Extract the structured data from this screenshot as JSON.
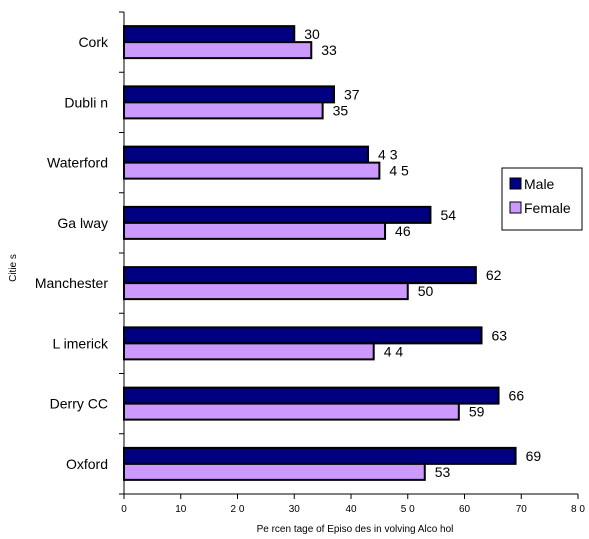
{
  "chart_data": {
    "type": "bar",
    "orientation": "horizontal",
    "categories": [
      "Cork",
      "Dublin",
      "Waterford",
      "Galway",
      "Manchester",
      "Limerick",
      "Derry CC",
      "Oxford"
    ],
    "series": [
      {
        "name": "Male",
        "values": [
          30,
          37,
          43,
          54,
          62,
          63,
          66,
          69
        ],
        "color": "#000080"
      },
      {
        "name": "Female",
        "values": [
          33,
          35,
          45,
          46,
          50,
          44,
          59,
          53
        ],
        "color": "#cc99ff"
      }
    ],
    "value_labels": {
      "Male": [
        "30",
        "37",
        "4 3",
        "54",
        "62",
        "63",
        "66",
        "69"
      ],
      "Female": [
        "33",
        "35",
        "4 5",
        "46",
        "50",
        "4 4",
        "59",
        "53"
      ]
    },
    "category_labels": [
      "Cork",
      "Dubli n",
      "Waterford",
      "Ga lway",
      "Manchester",
      "L imerick",
      "Derry CC",
      "Oxford"
    ],
    "xlabel": "Pe rcen tage of Episo des in volving Alco hol",
    "ylabel": "Citie s",
    "xlim": [
      0,
      80
    ],
    "xticks": [
      0,
      10,
      20,
      30,
      40,
      50,
      60,
      70,
      80
    ],
    "xtick_labels": [
      "0",
      "10",
      "2 0",
      "30",
      "40",
      "5 0",
      "60",
      "70",
      "8 0"
    ],
    "grid": false,
    "legend": {
      "position": "right",
      "entries": [
        "Male",
        "Female"
      ]
    }
  }
}
